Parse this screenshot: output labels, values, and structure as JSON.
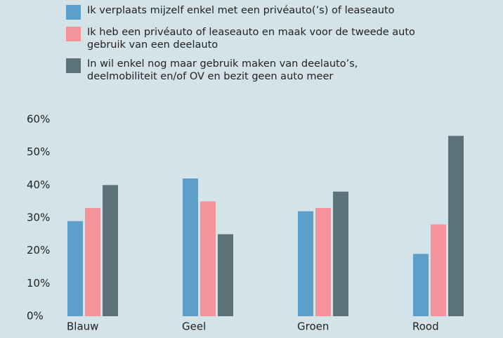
{
  "chart_data": {
    "type": "bar",
    "categories": [
      "Blauw",
      "Geel",
      "Groen",
      "Rood"
    ],
    "series": [
      {
        "name": "Ik verplaats mijzelf enkel met een privéauto(’s) of leaseauto",
        "color": "#5b9fca",
        "values": [
          29,
          42,
          32,
          19
        ]
      },
      {
        "name": "Ik heb een privéauto of leaseauto en maak voor de tweede auto gebruik van een deelauto",
        "color": "#f4939c",
        "values": [
          33,
          35,
          33,
          28
        ]
      },
      {
        "name": "In wil enkel nog maar gebruik maken van deelauto’s, deelmobiliteit en/of OV en bezit geen auto meer",
        "color": "#5c7279",
        "values": [
          40,
          25,
          38,
          55
        ]
      }
    ],
    "ylim": [
      0,
      60
    ],
    "yticks": [
      {
        "value": 0,
        "label": "0%"
      },
      {
        "value": 10,
        "label": "10%"
      },
      {
        "value": 20,
        "label": "20%"
      },
      {
        "value": 30,
        "label": "30%"
      },
      {
        "value": 40,
        "label": "40%"
      },
      {
        "value": 50,
        "label": "50%"
      },
      {
        "value": 60,
        "label": "60%"
      }
    ],
    "grid": false
  }
}
